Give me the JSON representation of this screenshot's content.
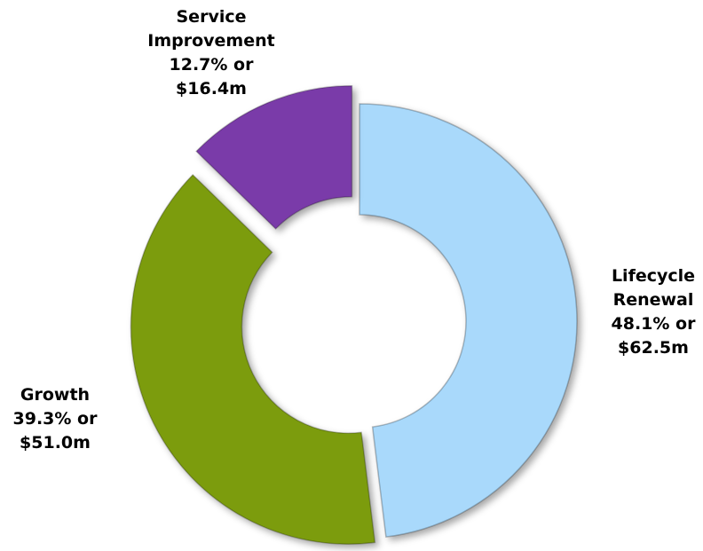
{
  "chart_data": {
    "type": "donut",
    "categories": [
      "Lifecycle Renewal",
      "Growth",
      "Service Improvement"
    ],
    "values": [
      48.1,
      39.3,
      12.7
    ],
    "value_labels": [
      "48.1% or $62.5m",
      "39.3% or $51.0m",
      "12.7% or $16.4m"
    ],
    "colors": [
      "#a9d9fb",
      "#7b9c0c",
      "#7a3ba9"
    ]
  }
}
